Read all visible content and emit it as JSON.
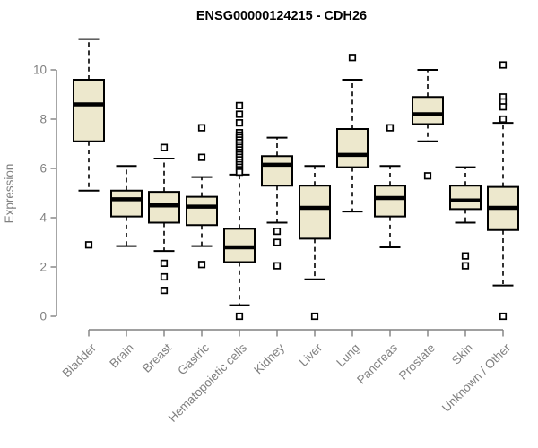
{
  "header": {
    "title": "ENSG00000124215 - CDH26"
  },
  "chart_data": {
    "type": "boxplot",
    "title": "ENSG00000124215 - CDH26",
    "xlabel": "",
    "ylabel": "Expression",
    "axis_range": [
      0,
      10
    ],
    "yticks": [
      0,
      2,
      4,
      6,
      8,
      10
    ],
    "grid": false,
    "legend": "none",
    "categories": [
      "Bladder",
      "Brain",
      "Breast",
      "Gastric",
      "Hematopoietic cells",
      "Kidney",
      "Liver",
      "Lung",
      "Pancreas",
      "Prostate",
      "Skin",
      "Unknown / Other"
    ],
    "series": [
      {
        "category": "Bladder",
        "whisker_low": 5.1,
        "q1": 7.1,
        "median": 8.6,
        "q3": 9.6,
        "whisker_high": 11.25,
        "outliers": [
          2.9
        ]
      },
      {
        "category": "Brain",
        "whisker_low": 2.85,
        "q1": 4.05,
        "median": 4.75,
        "q3": 5.1,
        "whisker_high": 6.1,
        "outliers": []
      },
      {
        "category": "Breast",
        "whisker_low": 2.65,
        "q1": 3.8,
        "median": 4.5,
        "q3": 5.05,
        "whisker_high": 6.4,
        "outliers": [
          6.85,
          2.15,
          1.6,
          1.05
        ]
      },
      {
        "category": "Gastric",
        "whisker_low": 2.85,
        "q1": 3.7,
        "median": 4.45,
        "q3": 4.85,
        "whisker_high": 5.65,
        "outliers": [
          7.65,
          6.45,
          2.1
        ]
      },
      {
        "category": "Hematopoietic cells",
        "whisker_low": 0.45,
        "q1": 2.2,
        "median": 2.8,
        "q3": 3.55,
        "whisker_high": 5.75,
        "outliers": [
          8.55,
          8.2,
          7.85,
          7.45,
          7.35,
          7.25,
          7.15,
          7.05,
          6.95,
          6.85,
          6.75,
          6.65,
          6.55,
          6.45,
          6.35,
          6.25,
          6.15,
          6.05,
          5.95,
          5.85,
          0
        ]
      },
      {
        "category": "Kidney",
        "whisker_low": 3.8,
        "q1": 5.3,
        "median": 6.15,
        "q3": 6.5,
        "whisker_high": 7.25,
        "outliers": [
          3.45,
          3.0,
          2.05
        ]
      },
      {
        "category": "Liver",
        "whisker_low": 1.5,
        "q1": 3.15,
        "median": 4.4,
        "q3": 5.3,
        "whisker_high": 6.1,
        "outliers": [
          0
        ]
      },
      {
        "category": "Lung",
        "whisker_low": 4.25,
        "q1": 6.05,
        "median": 6.55,
        "q3": 7.6,
        "whisker_high": 9.6,
        "outliers": [
          10.5
        ]
      },
      {
        "category": "Pancreas",
        "whisker_low": 2.8,
        "q1": 4.05,
        "median": 4.8,
        "q3": 5.3,
        "whisker_high": 6.1,
        "outliers": [
          7.65
        ]
      },
      {
        "category": "Prostate",
        "whisker_low": 7.1,
        "q1": 7.8,
        "median": 8.2,
        "q3": 8.9,
        "whisker_high": 10.0,
        "outliers": [
          5.7
        ]
      },
      {
        "category": "Skin",
        "whisker_low": 3.8,
        "q1": 4.35,
        "median": 4.7,
        "q3": 5.3,
        "whisker_high": 6.05,
        "outliers": [
          2.45,
          2.05
        ]
      },
      {
        "category": "Unknown / Other",
        "whisker_low": 1.25,
        "q1": 3.5,
        "median": 4.4,
        "q3": 5.25,
        "whisker_high": 7.85,
        "outliers": [
          10.2,
          8.9,
          8.7,
          8.5,
          8.0,
          0
        ]
      }
    ],
    "colors": {
      "box_fill": "#ede8cd",
      "box_stroke": "#000000",
      "median": "#000000",
      "axis": "#808080",
      "title": "#000000",
      "background": "#ffffff"
    }
  }
}
